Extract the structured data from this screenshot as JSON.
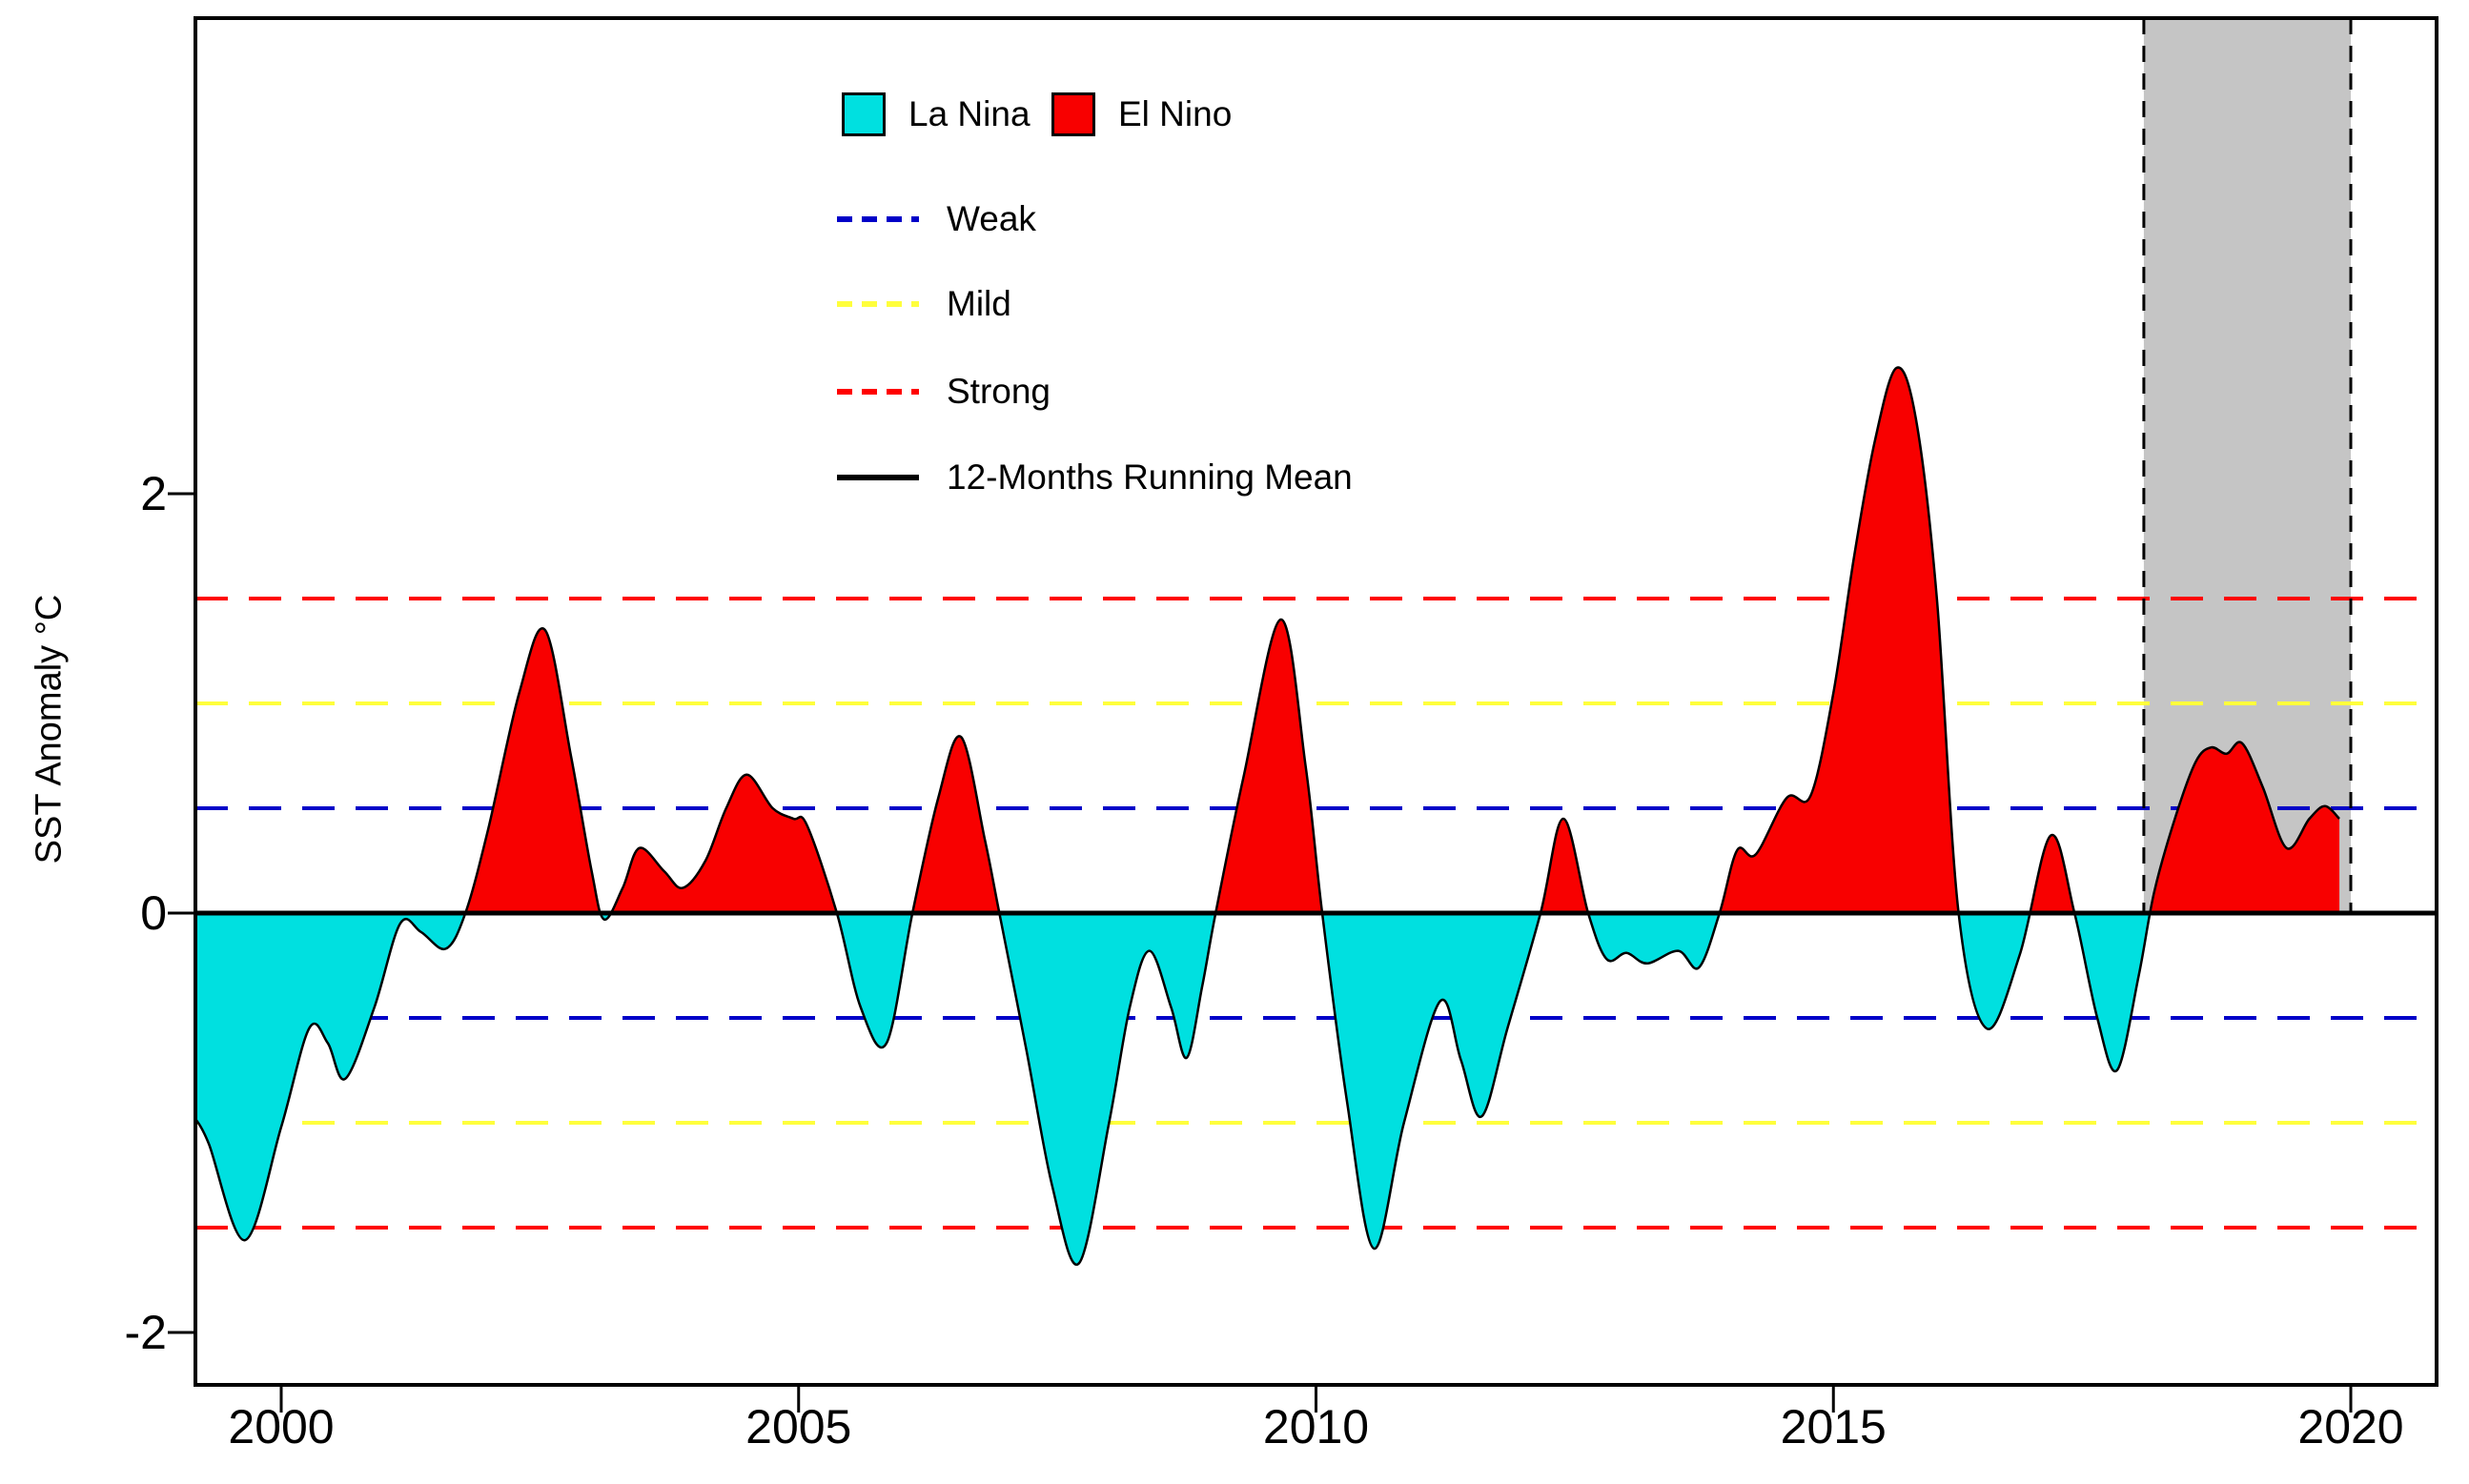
{
  "figure_title": "",
  "chart_data": {
    "type": "area",
    "title": "",
    "xlabel": "",
    "ylabel": "SST Anomaly °C",
    "xlim": [
      1999.17,
      2020.83
    ],
    "ylim": [
      -2.25,
      4.25
    ],
    "x_ticks": [
      2000,
      2005,
      2010,
      2015,
      2020
    ],
    "y_ticks": [
      2,
      0,
      -2
    ],
    "grid": false,
    "zero_line": 0,
    "legend": {
      "position": "top-center-inside",
      "fills": [
        {
          "label": "La Nina",
          "color": "#00E0E0"
        },
        {
          "label": "El Nino",
          "color": "#F80000"
        }
      ],
      "lines": [
        {
          "label": "Weak",
          "color": "#0000C8",
          "style": "dashed",
          "threshold": 0.5
        },
        {
          "label": "Mild",
          "color": "#FFFF3C",
          "style": "dashed",
          "threshold": 1.0
        },
        {
          "label": "Strong",
          "color": "#FF0000",
          "style": "dashed",
          "threshold": 1.5
        },
        {
          "label": "12-Months Running Mean",
          "color": "#000000",
          "style": "solid"
        }
      ]
    },
    "highlight_band": {
      "x_start": 2018.0,
      "x_end": 2020.0,
      "fill": "#C5C5C5",
      "border": "black dashed",
      "vertical_extent": "plot top to zero line"
    },
    "series": [
      {
        "name": "12-Months Running Mean SST Anomaly",
        "fill_positive_label": "El Nino",
        "fill_negative_label": "La Nina",
        "points": [
          [
            1999.17,
            -0.98
          ],
          [
            1999.3,
            -1.1
          ],
          [
            1999.65,
            -1.56
          ],
          [
            2000.0,
            -1.02
          ],
          [
            2000.27,
            -0.55
          ],
          [
            2000.45,
            -0.62
          ],
          [
            2000.62,
            -0.79
          ],
          [
            2000.9,
            -0.45
          ],
          [
            2001.15,
            -0.05
          ],
          [
            2001.35,
            -0.09
          ],
          [
            2001.59,
            -0.17
          ],
          [
            2001.78,
            0.0
          ],
          [
            2002.0,
            0.4
          ],
          [
            2002.3,
            1.05
          ],
          [
            2002.55,
            1.35
          ],
          [
            2002.8,
            0.75
          ],
          [
            2003.0,
            0.2
          ],
          [
            2003.12,
            -0.03
          ],
          [
            2003.3,
            0.12
          ],
          [
            2003.46,
            0.31
          ],
          [
            2003.7,
            0.2
          ],
          [
            2003.88,
            0.12
          ],
          [
            2004.1,
            0.25
          ],
          [
            2004.3,
            0.5
          ],
          [
            2004.5,
            0.66
          ],
          [
            2004.75,
            0.5
          ],
          [
            2004.95,
            0.45
          ],
          [
            2005.08,
            0.42
          ],
          [
            2005.37,
            0.0
          ],
          [
            2005.6,
            -0.45
          ],
          [
            2005.85,
            -0.62
          ],
          [
            2006.1,
            0.0
          ],
          [
            2006.35,
            0.55
          ],
          [
            2006.57,
            0.84
          ],
          [
            2006.8,
            0.35
          ],
          [
            2006.94,
            0.0
          ],
          [
            2007.2,
            -0.65
          ],
          [
            2007.45,
            -1.3
          ],
          [
            2007.71,
            -1.67
          ],
          [
            2008.0,
            -1.0
          ],
          [
            2008.2,
            -0.45
          ],
          [
            2008.39,
            -0.18
          ],
          [
            2008.6,
            -0.45
          ],
          [
            2008.75,
            -0.69
          ],
          [
            2008.9,
            -0.35
          ],
          [
            2009.03,
            0.0
          ],
          [
            2009.3,
            0.65
          ],
          [
            2009.66,
            1.4
          ],
          [
            2009.9,
            0.7
          ],
          [
            2010.06,
            0.0
          ],
          [
            2010.3,
            -0.9
          ],
          [
            2010.56,
            -1.6
          ],
          [
            2010.85,
            -1.0
          ],
          [
            2011.2,
            -0.42
          ],
          [
            2011.4,
            -0.7
          ],
          [
            2011.6,
            -0.97
          ],
          [
            2011.85,
            -0.55
          ],
          [
            2012.17,
            0.0
          ],
          [
            2012.39,
            0.45
          ],
          [
            2012.63,
            0.0
          ],
          [
            2012.81,
            -0.22
          ],
          [
            2013.0,
            -0.19
          ],
          [
            2013.2,
            -0.24
          ],
          [
            2013.5,
            -0.18
          ],
          [
            2013.7,
            -0.26
          ],
          [
            2013.9,
            0.0
          ],
          [
            2014.07,
            0.3
          ],
          [
            2014.25,
            0.28
          ],
          [
            2014.55,
            0.55
          ],
          [
            2014.78,
            0.56
          ],
          [
            2015.0,
            1.05
          ],
          [
            2015.2,
            1.7
          ],
          [
            2015.4,
            2.25
          ],
          [
            2015.61,
            2.6
          ],
          [
            2015.8,
            2.35
          ],
          [
            2016.0,
            1.5
          ],
          [
            2016.21,
            0.0
          ],
          [
            2016.48,
            -0.55
          ],
          [
            2016.8,
            -0.2
          ],
          [
            2017.1,
            0.37
          ],
          [
            2017.33,
            0.0
          ],
          [
            2017.55,
            -0.5
          ],
          [
            2017.74,
            -0.75
          ],
          [
            2017.95,
            -0.3
          ],
          [
            2018.1,
            0.1
          ],
          [
            2018.3,
            0.45
          ],
          [
            2018.5,
            0.72
          ],
          [
            2018.65,
            0.79
          ],
          [
            2018.8,
            0.76
          ],
          [
            2018.95,
            0.81
          ],
          [
            2019.15,
            0.6
          ],
          [
            2019.38,
            0.31
          ],
          [
            2019.6,
            0.45
          ],
          [
            2019.75,
            0.51
          ],
          [
            2019.89,
            0.45
          ]
        ]
      }
    ]
  },
  "colors": {
    "la_nina": "#00E0E0",
    "el_nino": "#F80000",
    "weak": "#0000C8",
    "mild": "#FFFF3C",
    "strong": "#FF0000",
    "running_mean": "#000000",
    "band": "#C5C5C5",
    "axis": "#000000"
  }
}
